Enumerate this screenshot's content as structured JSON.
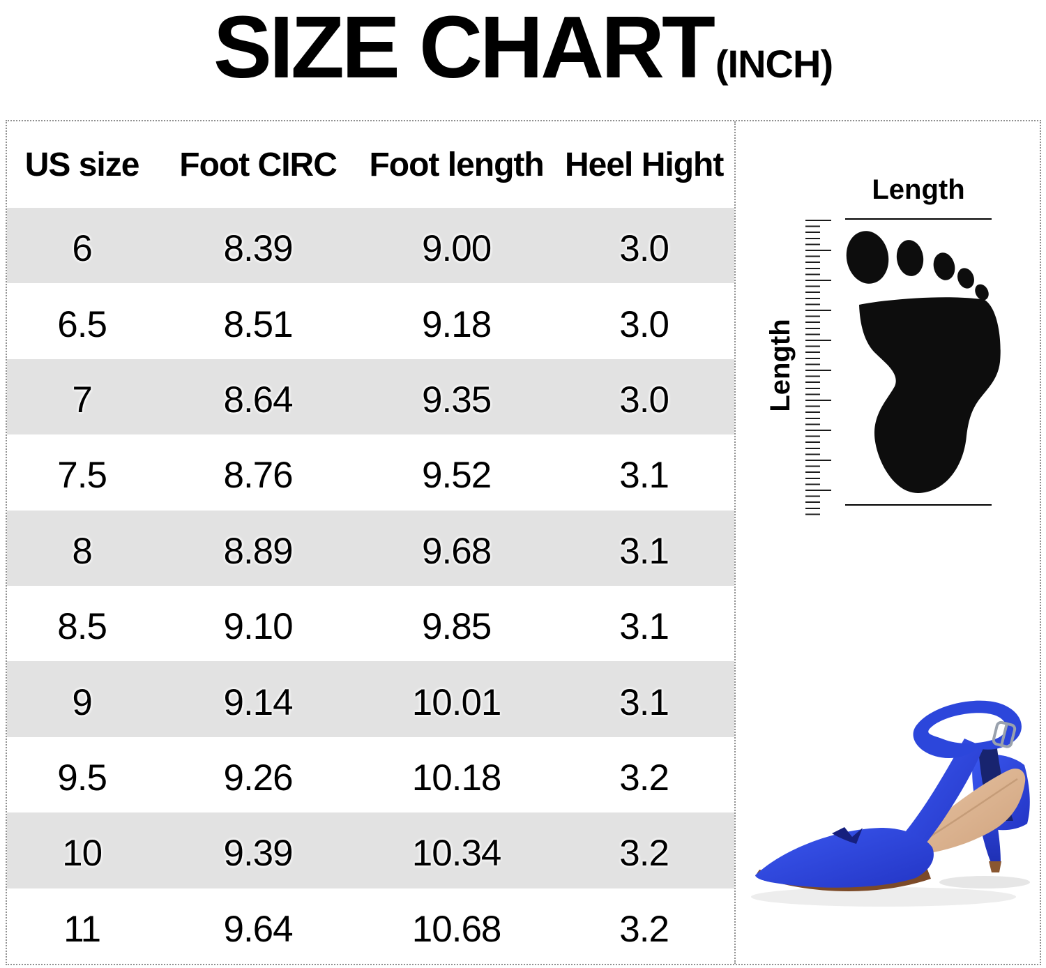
{
  "title": {
    "text": "SIZE CHART",
    "unit_suffix": "(INCH)"
  },
  "chart_data": {
    "type": "table",
    "title": "SIZE CHART (INCH)",
    "units": "inch",
    "columns": [
      "US size",
      "Foot CIRC",
      "Foot length",
      "Heel Hight"
    ],
    "rows": [
      [
        "6",
        "8.39",
        "9.00",
        "3.0"
      ],
      [
        "6.5",
        "8.51",
        "9.18",
        "3.0"
      ],
      [
        "7",
        "8.64",
        "9.35",
        "3.0"
      ],
      [
        "7.5",
        "8.76",
        "9.52",
        "3.1"
      ],
      [
        "8",
        "8.89",
        "9.68",
        "3.1"
      ],
      [
        "8.5",
        "9.10",
        "9.85",
        "3.1"
      ],
      [
        "9",
        "9.14",
        "10.01",
        "3.1"
      ],
      [
        "9.5",
        "9.26",
        "10.18",
        "3.2"
      ],
      [
        "10",
        "9.39",
        "10.34",
        "3.2"
      ],
      [
        "11",
        "9.64",
        "10.68",
        "3.2"
      ]
    ]
  },
  "measure_diagram": {
    "top_label": "Length",
    "side_label": "Length",
    "footprint_icon": "black-footprint",
    "ruler_icon": "vertical-ruler-ticks"
  },
  "shoe_image": {
    "icon": "blue-ankle-strap-stiletto-pump"
  },
  "colors": {
    "row_stripe": "#e2e2e2",
    "dotted_border": "#8f8f8f",
    "ink": "#000000",
    "shoe_blue": "#2c46db",
    "shoe_blue_dark": "#1f30b4",
    "shoe_lining_navy": "#18246f",
    "insole_tan": "#dcb495",
    "sole_brown": "#7c4a28",
    "heel_tip_brown": "#8a5731",
    "buckle_silver": "#9aa2ad"
  }
}
